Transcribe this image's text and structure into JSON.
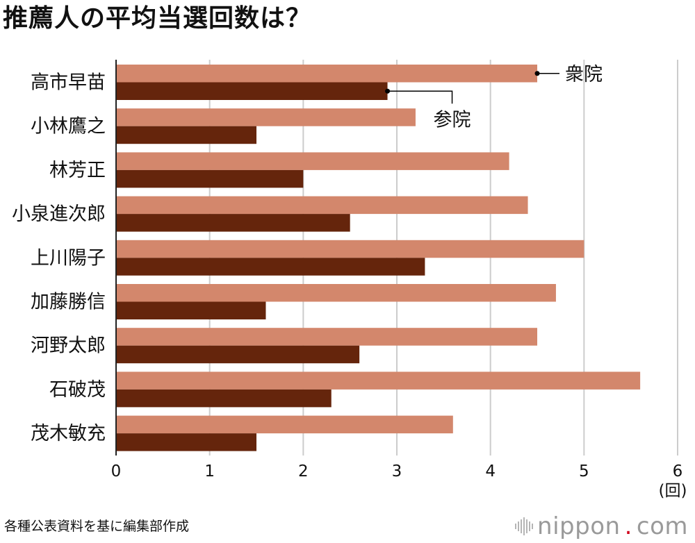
{
  "chart_data": {
    "type": "bar",
    "orientation": "horizontal",
    "title": "推薦人の平均当選回数は？",
    "categories": [
      "高市早苗",
      "小林鷹之",
      "林芳正",
      "小泉進次郎",
      "上川陽子",
      "加藤勝信",
      "河野太郎",
      "石破茂",
      "茂木敏充"
    ],
    "series": [
      {
        "name": "衆院",
        "color": "#d3876c",
        "values": [
          4.5,
          3.2,
          4.2,
          4.4,
          5.0,
          4.7,
          4.5,
          5.6,
          3.6
        ]
      },
      {
        "name": "参院",
        "color": "#65250c",
        "values": [
          2.9,
          1.5,
          2.0,
          2.5,
          3.3,
          1.6,
          2.6,
          2.3,
          1.5
        ]
      }
    ],
    "xlim": [
      0,
      6
    ],
    "xticks": [
      "0",
      "1",
      "2",
      "3",
      "4",
      "5",
      "6"
    ],
    "xunit": "(回)",
    "grid": true
  },
  "footer": {
    "source": "各種公表資料を基に編集部作成",
    "brand_name": "nippon",
    "brand_dot": ".",
    "brand_tld": "com"
  }
}
